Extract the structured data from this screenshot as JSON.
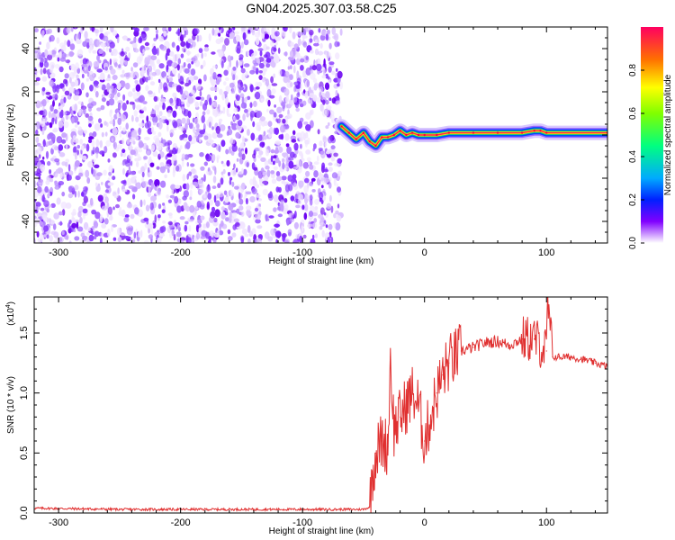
{
  "title": "GN04.2025.307.03.58.C25",
  "chart_data": [
    {
      "type": "heatmap",
      "name": "spectrogram",
      "xlabel": "Height of straight line (km)",
      "ylabel": "Frequency (Hz)",
      "xlim": [
        -320,
        150
      ],
      "ylim": [
        -50,
        50
      ],
      "xticks": [
        -300,
        -200,
        -100,
        0,
        100
      ],
      "yticks": [
        -40,
        -20,
        0,
        20,
        40
      ],
      "noise_region_x": [
        -320,
        -68
      ],
      "signal_ridge": {
        "x": [
          -68,
          -62,
          -56,
          -50,
          -45,
          -40,
          -35,
          -30,
          -25,
          -20,
          -15,
          -10,
          -5,
          0,
          10,
          20,
          40,
          60,
          80,
          90,
          95,
          100,
          150
        ],
        "freq": [
          4,
          1,
          -2,
          1,
          -3,
          -5,
          -1,
          -1,
          0,
          2,
          0,
          1,
          0,
          0,
          0,
          1,
          1,
          1,
          1,
          2,
          2,
          1,
          1
        ]
      },
      "colorbar": {
        "label": "Normalized spectral amplitude",
        "range": [
          0,
          1
        ],
        "ticks": [
          "0.0",
          "0.2",
          "0.4",
          "0.6",
          "0.8"
        ]
      }
    },
    {
      "type": "line",
      "name": "snr",
      "xlabel": "Height of straight line (km)",
      "ylabel": "SNR (10 * v/v)",
      "scale_label": "(x10",
      "scale_exp": "4",
      "xlim": [
        -320,
        150
      ],
      "ylim": [
        0,
        1.8
      ],
      "xticks": [
        -300,
        -200,
        -100,
        0,
        100
      ],
      "yticks": [
        "0.0",
        "0.5",
        "1.0",
        "1.5"
      ],
      "color": "#e03030",
      "series": [
        {
          "name": "SNR",
          "x": [
            -320,
            -250,
            -200,
            -150,
            -100,
            -50,
            -45,
            -43,
            -40,
            -35,
            -30,
            -28,
            -25,
            -20,
            -15,
            -10,
            -5,
            0,
            5,
            10,
            15,
            20,
            25,
            30,
            40,
            50,
            60,
            70,
            80,
            90,
            100,
            101,
            105,
            110,
            120,
            130,
            140,
            150
          ],
          "y": [
            0.04,
            0.03,
            0.03,
            0.03,
            0.03,
            0.03,
            0.05,
            0.3,
            0.5,
            0.6,
            0.55,
            1.3,
            0.7,
            0.8,
            0.9,
            1.0,
            0.9,
            0.6,
            0.8,
            1.0,
            1.15,
            1.25,
            1.3,
            1.35,
            1.38,
            1.42,
            1.43,
            1.4,
            1.45,
            1.45,
            1.35,
            1.75,
            1.3,
            1.3,
            1.3,
            1.28,
            1.25,
            1.22
          ]
        }
      ]
    }
  ]
}
